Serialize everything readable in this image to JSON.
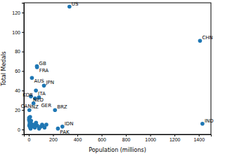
{
  "chart_data": {
    "type": "scatter",
    "x_label": "Population (millions)",
    "y_label": "Total Medals",
    "x": [
      335,
      1410,
      67,
      68,
      26,
      125,
      59,
      17.5,
      84,
      52,
      39,
      216,
      5,
      1430,
      277,
      240,
      2,
      5,
      10,
      3,
      11,
      19,
      8,
      6,
      4,
      9,
      12,
      15,
      20,
      25,
      30,
      38,
      45,
      50,
      60,
      70,
      85,
      100,
      110,
      115,
      130,
      145
    ],
    "values": [
      126,
      91,
      65,
      64,
      53,
      45,
      40,
      34,
      33,
      32,
      27,
      20,
      20,
      6,
      3,
      1,
      10,
      9,
      8,
      12,
      13,
      9,
      7,
      5,
      4,
      3,
      2,
      1,
      6,
      5,
      4,
      3,
      5,
      2,
      7,
      4,
      1,
      3,
      5,
      4,
      2,
      5
    ],
    "labels": [
      "US",
      "CHN",
      "GB",
      "FRA",
      "AUS",
      "JPN",
      "ITA",
      "NED",
      "GER",
      "KOR",
      "CAN",
      "BRZ",
      "NZ",
      "IND",
      "IDN",
      "PAK",
      null,
      null,
      null,
      null,
      null,
      null,
      null,
      null,
      null,
      null,
      null,
      null,
      null,
      null,
      null,
      null,
      null,
      null,
      null,
      null,
      null,
      null,
      null,
      null,
      null,
      null
    ],
    "color": "#1f77b4",
    "xlim": [
      -40,
      1500
    ],
    "xticks": [
      0,
      200,
      400,
      600,
      800,
      1000,
      1200,
      1400
    ],
    "ylim": [
      -5,
      130
    ],
    "yticks": [
      0,
      20,
      40,
      60,
      80,
      100,
      120
    ],
    "grid": false
  }
}
